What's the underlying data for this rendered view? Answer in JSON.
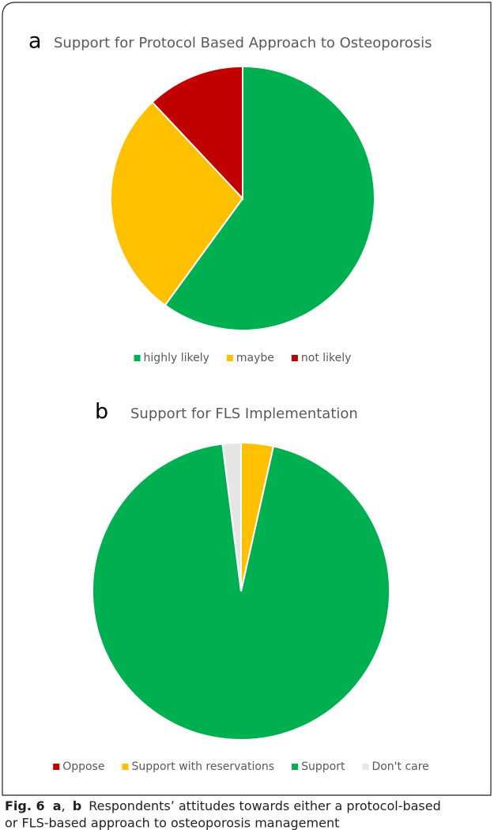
{
  "chart_data": [
    {
      "type": "pie",
      "panel": "a",
      "title": "Support for Protocol Based Approach to  Osteoporosis",
      "categories": [
        "highly likely",
        "maybe",
        "not likely"
      ],
      "values": [
        60,
        28,
        12
      ],
      "colors": [
        "#00b050",
        "#ffc000",
        "#c00000"
      ],
      "legend": "bottom"
    },
    {
      "type": "pie",
      "panel": "b",
      "title": "Support for FLS Implementation",
      "categories": [
        "Oppose",
        "Support with reservations",
        "Support",
        "Don't care"
      ],
      "values": [
        0,
        3.5,
        94.5,
        2
      ],
      "colors": [
        "#c00000",
        "#ffc000",
        "#00b050",
        "#e7e6e6"
      ],
      "legend": "bottom"
    }
  ],
  "caption": {
    "label": "Fig. 6",
    "panel_a": "a",
    "separator": ",",
    "panel_b": "b",
    "line1": "Respondents’ attitudes towards either a protocol-based",
    "line2": "or FLS-based approach to osteoporosis management"
  }
}
